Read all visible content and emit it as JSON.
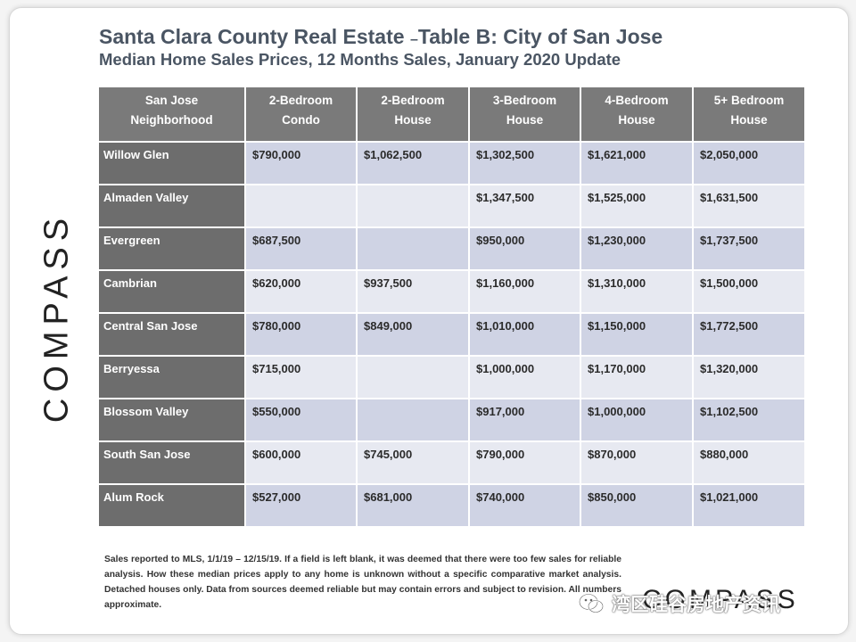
{
  "title": {
    "main": "Santa Clara County Real Estate",
    "dash": "–",
    "rest": "Table B: City of San Jose",
    "subtitle": "Median Home Sales Prices, 12 Months Sales, January 2020 Update"
  },
  "logo": "COMPASS",
  "table": {
    "headers": [
      [
        "San Jose",
        "Neighborhood"
      ],
      [
        "2-Bedroom",
        "Condo"
      ],
      [
        "2-Bedroom",
        "House"
      ],
      [
        "3-Bedroom",
        "House"
      ],
      [
        "4-Bedroom",
        "House"
      ],
      [
        "5+ Bedroom",
        "House"
      ]
    ],
    "rows": [
      {
        "neighborhood": "Willow Glen",
        "values": [
          "$790,000",
          "$1,062,500",
          "$1,302,500",
          "$1,621,000",
          "$2,050,000"
        ]
      },
      {
        "neighborhood": "Almaden Valley",
        "values": [
          "",
          "",
          "$1,347,500",
          "$1,525,000",
          "$1,631,500"
        ]
      },
      {
        "neighborhood": "Evergreen",
        "values": [
          "$687,500",
          "",
          "$950,000",
          "$1,230,000",
          "$1,737,500"
        ]
      },
      {
        "neighborhood": "Cambrian",
        "values": [
          "$620,000",
          "$937,500",
          "$1,160,000",
          "$1,310,000",
          "$1,500,000"
        ]
      },
      {
        "neighborhood": "Central San Jose",
        "values": [
          "$780,000",
          "$849,000",
          "$1,010,000",
          "$1,150,000",
          "$1,772,500"
        ]
      },
      {
        "neighborhood": "Berryessa",
        "values": [
          "$715,000",
          "",
          "$1,000,000",
          "$1,170,000",
          "$1,320,000"
        ]
      },
      {
        "neighborhood": "Blossom Valley",
        "values": [
          "$550,000",
          "",
          "$917,000",
          "$1,000,000",
          "$1,102,500"
        ]
      },
      {
        "neighborhood": "South San Jose",
        "values": [
          "$600,000",
          "$745,000",
          "$790,000",
          "$870,000",
          "$880,000"
        ]
      },
      {
        "neighborhood": "Alum Rock",
        "values": [
          "$527,000",
          "$681,000",
          "$740,000",
          "$850,000",
          "$1,021,000"
        ]
      }
    ]
  },
  "footnote": "Sales reported to MLS, 1/1/19 – 12/15/19. If a field is left blank, it was deemed that there were too few sales for reliable analysis. How these median prices apply to any home is unknown without a specific comparative market analysis. Detached houses only. Data from sources deemed reliable but may contain errors and subject to revision. All numbers approximate.",
  "watermark": "湾区硅谷房地产资讯",
  "colors": {
    "header_bg": "#7a7a7a",
    "neighborhood_bg": "#6d6d6d",
    "row_dark": "#cfd3e4",
    "row_light": "#e7e9f1",
    "title": "#4a5563"
  }
}
